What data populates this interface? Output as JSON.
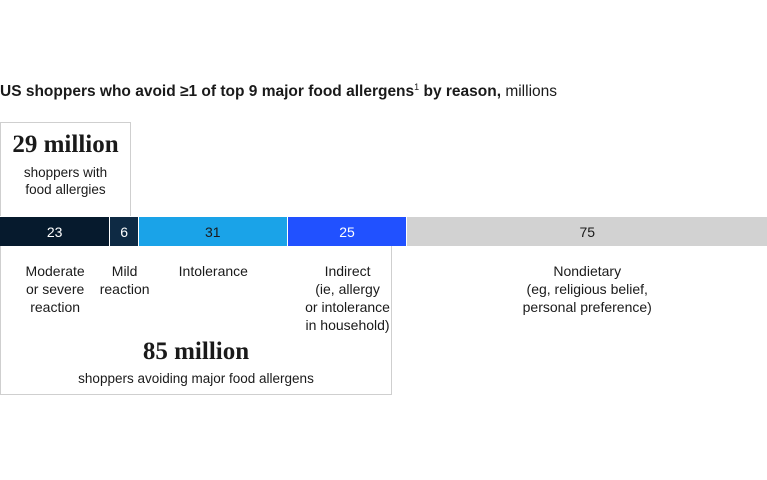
{
  "title": {
    "bold_text": "US shoppers who avoid ≥1 of top 9 major food allergens",
    "footnote": "1",
    "bold_suffix": " by reason,",
    "unit": " millions"
  },
  "callouts": {
    "allergy_total": {
      "value": "29 million",
      "label_line1": "shoppers with",
      "label_line2": "food allergies"
    },
    "avoiding_total": {
      "value": "85 million",
      "label": "shoppers avoiding major food allergens"
    }
  },
  "chart_data": {
    "type": "bar",
    "orientation": "horizontal-stacked",
    "title": "US shoppers who avoid ≥1 of top 9 major food allergens1 by reason, millions",
    "categories": [
      "Moderate or severe reaction",
      "Mild reaction",
      "Intolerance",
      "Indirect (ie, allergy or intolerance in household)",
      "Nondietary (eg, religious belief, personal preference)"
    ],
    "values": [
      23,
      6,
      31,
      25,
      75
    ],
    "colors": [
      "#061a2d",
      "#0e2a44",
      "#1aa3e8",
      "#2151ff",
      "#d2d2d2"
    ],
    "label_colors": [
      "#ffffff",
      "#ffffff",
      "#1a1a1a",
      "#ffffff",
      "#1a1a1a"
    ],
    "category_lines": [
      [
        "Moderate",
        "or severe",
        "reaction"
      ],
      [
        "Mild",
        "reaction"
      ],
      [
        "Intolerance"
      ],
      [
        "Indirect",
        "(ie, allergy",
        "or intolerance",
        "in household)"
      ],
      [
        "Nondietary",
        "(eg, religious belief,",
        "personal preference)"
      ]
    ],
    "grid": false,
    "legend": "none"
  }
}
